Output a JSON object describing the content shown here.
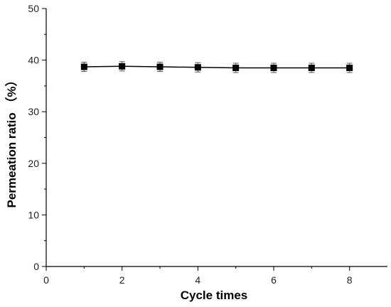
{
  "chart_data": {
    "type": "line",
    "xlabel": "Cycle times",
    "ylabel": "Permeation ratio （%）",
    "xlim": [
      0,
      9
    ],
    "ylim": [
      0,
      50
    ],
    "x_ticks": [
      0,
      2,
      4,
      6,
      8
    ],
    "y_ticks": [
      0,
      10,
      20,
      30,
      40,
      50
    ],
    "grid": false,
    "legend": "none",
    "series": [
      {
        "marker": "square",
        "color": "#000000",
        "x": [
          1,
          2,
          3,
          4,
          5,
          6,
          7,
          8
        ],
        "y": [
          38.7,
          38.8,
          38.7,
          38.6,
          38.5,
          38.5,
          38.5,
          38.5
        ],
        "error": [
          0.9,
          0.9,
          0.9,
          0.9,
          0.9,
          0.9,
          0.9,
          0.9
        ]
      }
    ]
  }
}
